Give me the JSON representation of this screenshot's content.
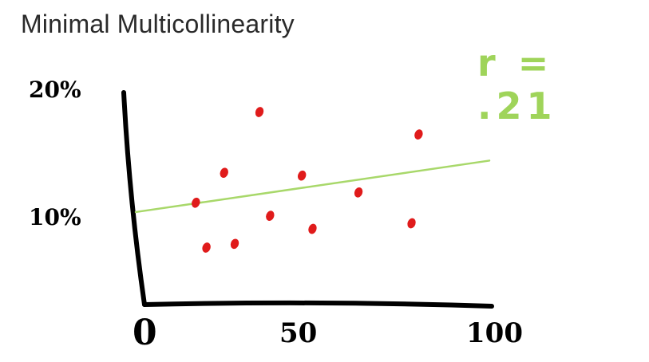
{
  "title": "Minimal Multicollinearity",
  "chart_data": {
    "type": "scatter",
    "annotation": "r = .21",
    "x_ticks": [
      {
        "label": "0",
        "value": 0
      },
      {
        "label": "50",
        "value": 50
      },
      {
        "label": "100",
        "value": 100
      }
    ],
    "y_ticks": [
      {
        "label": "20%",
        "value": 20
      },
      {
        "label": "10%",
        "value": 10
      }
    ],
    "xlim": [
      0,
      100
    ],
    "ylim": [
      0,
      22
    ],
    "points": [
      {
        "x": 35,
        "y": 20.0
      },
      {
        "x": 80,
        "y": 17.6
      },
      {
        "x": 25,
        "y": 13.5
      },
      {
        "x": 47,
        "y": 13.2
      },
      {
        "x": 63,
        "y": 11.4
      },
      {
        "x": 17,
        "y": 10.3
      },
      {
        "x": 38,
        "y": 8.9
      },
      {
        "x": 78,
        "y": 8.1
      },
      {
        "x": 50,
        "y": 7.5
      },
      {
        "x": 28,
        "y": 5.9
      },
      {
        "x": 20,
        "y": 5.5
      }
    ],
    "trendline": {
      "x1": 0,
      "y1": 9.3,
      "x2": 100,
      "y2": 14.8
    },
    "colors": {
      "points": "#e01b1b",
      "trendline": "#a8d86a",
      "axes": "#000000",
      "annotation": "#9fd45a"
    },
    "grid": false
  }
}
